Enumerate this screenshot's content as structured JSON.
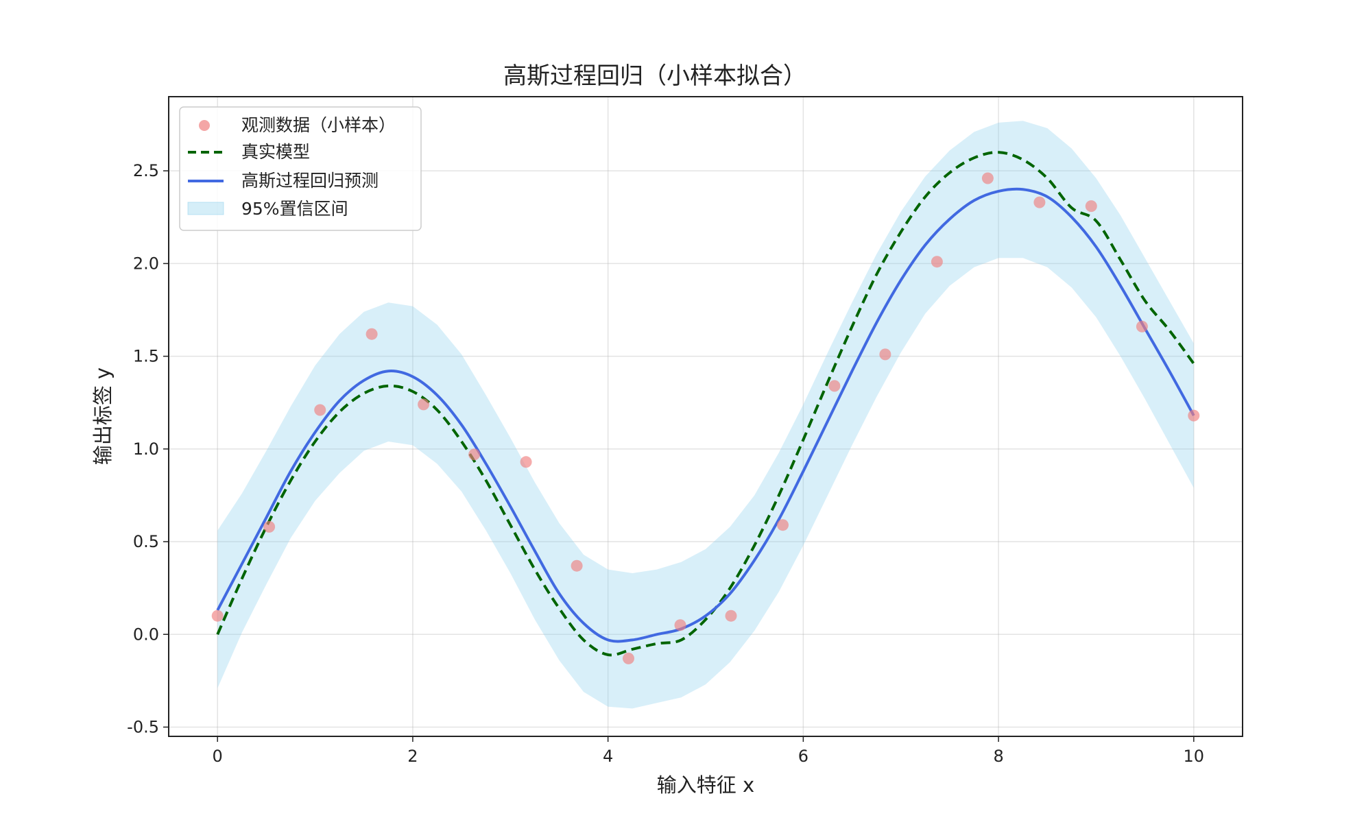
{
  "chart_data": {
    "type": "line",
    "title": "高斯过程回归（小样本拟合）",
    "xlabel": "输入特征 x",
    "ylabel": "输出标签 y",
    "xlim": [
      -0.5,
      10.5
    ],
    "ylim": [
      -0.55,
      2.9
    ],
    "xticks": [
      0,
      2,
      4,
      6,
      8,
      10
    ],
    "xtick_labels": [
      "0",
      "2",
      "4",
      "6",
      "8",
      "10"
    ],
    "yticks": [
      -0.5,
      0.0,
      0.5,
      1.0,
      1.5,
      2.0,
      2.5
    ],
    "ytick_labels": [
      "-0.5",
      "0.0",
      "0.5",
      "1.0",
      "1.5",
      "2.0",
      "2.5"
    ],
    "grid": true,
    "legend_position": "top-left",
    "colors": {
      "observed": "#f08080",
      "true_model": "#006400",
      "prediction": "#4169e1",
      "interval": "#87ceeb"
    },
    "observed": {
      "name": "观测数据（小样本）",
      "x": [
        0.0,
        0.53,
        1.05,
        1.58,
        2.11,
        2.63,
        3.16,
        3.68,
        4.21,
        4.74,
        5.26,
        5.79,
        6.32,
        6.84,
        7.37,
        7.89,
        8.42,
        8.95,
        9.47,
        10.0
      ],
      "y": [
        0.1,
        0.58,
        1.21,
        1.62,
        1.24,
        0.97,
        0.93,
        0.37,
        -0.13,
        0.05,
        0.1,
        0.59,
        1.34,
        1.51,
        2.01,
        2.46,
        2.33,
        2.31,
        1.66,
        1.18
      ]
    },
    "true_model": {
      "name": "真实模型",
      "x": [
        0,
        0.25,
        0.5,
        0.75,
        1.0,
        1.25,
        1.5,
        1.75,
        2.0,
        2.25,
        2.5,
        2.75,
        3.0,
        3.25,
        3.5,
        3.75,
        4.0,
        4.25,
        4.5,
        4.75,
        5.0,
        5.25,
        5.5,
        5.75,
        6.0,
        6.25,
        6.5,
        6.75,
        7.0,
        7.25,
        7.5,
        7.75,
        8.0,
        8.25,
        8.5,
        8.75,
        9.0,
        9.25,
        9.5,
        9.75,
        10.0
      ],
      "y": [
        0.0,
        0.3,
        0.58,
        0.83,
        1.04,
        1.2,
        1.3,
        1.34,
        1.31,
        1.21,
        1.04,
        0.83,
        0.59,
        0.35,
        0.14,
        -0.03,
        -0.11,
        -0.08,
        -0.05,
        -0.03,
        0.08,
        0.25,
        0.48,
        0.75,
        1.05,
        1.36,
        1.66,
        1.94,
        2.17,
        2.36,
        2.49,
        2.57,
        2.6,
        2.56,
        2.46,
        2.3,
        2.23,
        2.02,
        1.8,
        1.64,
        1.46
      ]
    },
    "prediction": {
      "name": "高斯过程回归预测",
      "x": [
        0,
        0.25,
        0.5,
        0.75,
        1.0,
        1.25,
        1.5,
        1.75,
        2.0,
        2.25,
        2.5,
        2.75,
        3.0,
        3.25,
        3.5,
        3.75,
        4.0,
        4.25,
        4.5,
        4.75,
        5.0,
        5.25,
        5.5,
        5.75,
        6.0,
        6.25,
        6.5,
        6.75,
        7.0,
        7.25,
        7.5,
        7.75,
        8.0,
        8.25,
        8.5,
        8.75,
        9.0,
        9.25,
        9.5,
        9.75,
        10.0
      ],
      "y": [
        0.13,
        0.38,
        0.63,
        0.88,
        1.09,
        1.26,
        1.37,
        1.42,
        1.39,
        1.29,
        1.13,
        0.92,
        0.69,
        0.45,
        0.22,
        0.06,
        -0.03,
        -0.03,
        0.0,
        0.03,
        0.1,
        0.22,
        0.4,
        0.62,
        0.88,
        1.15,
        1.42,
        1.68,
        1.91,
        2.1,
        2.24,
        2.34,
        2.39,
        2.4,
        2.36,
        2.25,
        2.09,
        1.88,
        1.65,
        1.42,
        1.18
      ]
    },
    "interval": {
      "name": "95%置信区间",
      "x": [
        0,
        0.25,
        0.5,
        0.75,
        1.0,
        1.25,
        1.5,
        1.75,
        2.0,
        2.25,
        2.5,
        2.75,
        3.0,
        3.25,
        3.5,
        3.75,
        4.0,
        4.25,
        4.5,
        4.75,
        5.0,
        5.25,
        5.5,
        5.75,
        6.0,
        6.25,
        6.5,
        6.75,
        7.0,
        7.25,
        7.5,
        7.75,
        8.0,
        8.25,
        8.5,
        8.75,
        9.0,
        9.25,
        9.5,
        9.75,
        10.0
      ],
      "lower": [
        -0.29,
        0.01,
        0.27,
        0.52,
        0.72,
        0.87,
        0.99,
        1.04,
        1.02,
        0.92,
        0.77,
        0.56,
        0.33,
        0.08,
        -0.14,
        -0.31,
        -0.39,
        -0.4,
        -0.37,
        -0.34,
        -0.27,
        -0.15,
        0.02,
        0.23,
        0.48,
        0.75,
        1.02,
        1.28,
        1.52,
        1.73,
        1.88,
        1.98,
        2.03,
        2.03,
        1.98,
        1.87,
        1.71,
        1.5,
        1.27,
        1.03,
        0.79
      ],
      "upper": [
        0.56,
        0.76,
        0.99,
        1.23,
        1.45,
        1.62,
        1.74,
        1.79,
        1.77,
        1.67,
        1.51,
        1.29,
        1.06,
        0.82,
        0.6,
        0.43,
        0.35,
        0.33,
        0.35,
        0.39,
        0.46,
        0.58,
        0.75,
        0.98,
        1.24,
        1.52,
        1.79,
        2.05,
        2.28,
        2.47,
        2.61,
        2.71,
        2.76,
        2.77,
        2.73,
        2.62,
        2.46,
        2.26,
        2.03,
        1.8,
        1.57
      ]
    }
  }
}
